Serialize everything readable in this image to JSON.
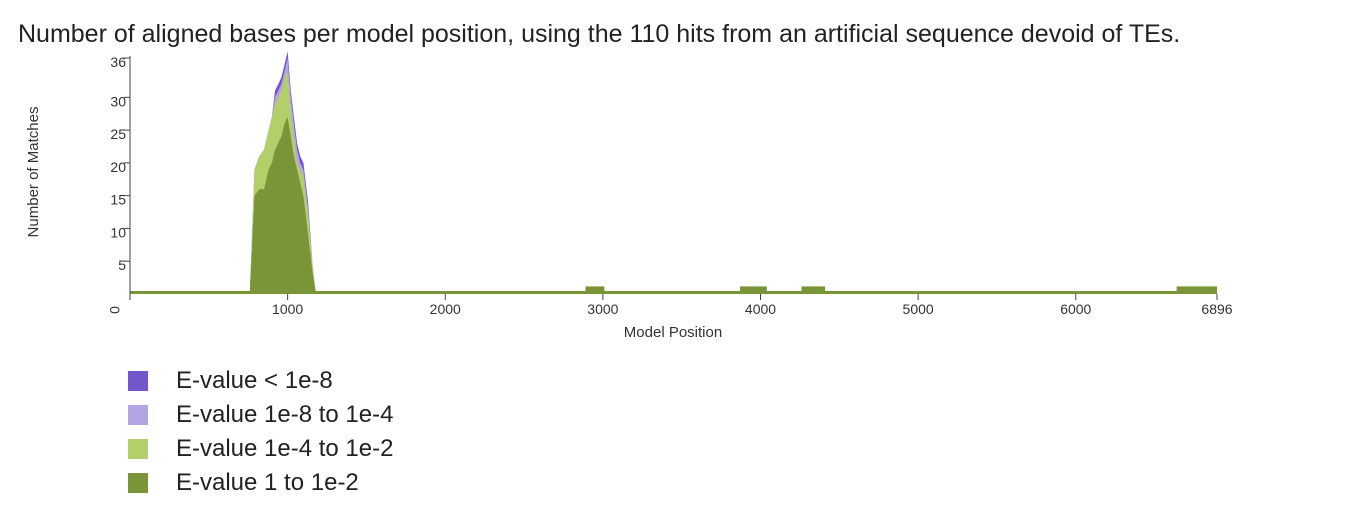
{
  "caption": "Number of aligned bases per model position, using the 110 hits from an artificial sequence devoid of TEs.",
  "chart_data": {
    "type": "area",
    "title": "",
    "xlabel": "Model Position",
    "ylabel": "Number of Matches",
    "xlim": [
      0,
      6896
    ],
    "ylim": [
      0,
      36
    ],
    "xticks": [
      0,
      1000,
      2000,
      3000,
      4000,
      5000,
      6000,
      6896
    ],
    "yticks": [
      5,
      10,
      15,
      20,
      25,
      30,
      36
    ],
    "grid": false,
    "legend_position": "bottom-left",
    "series": [
      {
        "name": "E-value < 1e-8",
        "color": "#7355cc",
        "x": [
          760,
          790,
          820,
          850,
          880,
          900,
          920,
          940,
          960,
          980,
          1000,
          1020,
          1040,
          1060,
          1080,
          1100,
          1130,
          1160,
          1180
        ],
        "y": [
          0,
          19,
          21,
          22,
          25,
          27,
          31,
          32,
          33,
          35,
          37,
          31,
          27,
          23,
          21,
          20,
          14,
          4,
          0
        ]
      },
      {
        "name": "E-value 1e-8 to 1e-4",
        "color": "#b3a4e4",
        "x": [
          760,
          790,
          820,
          850,
          880,
          900,
          920,
          940,
          960,
          980,
          1000,
          1020,
          1040,
          1060,
          1080,
          1100,
          1130,
          1160,
          1180
        ],
        "y": [
          0,
          19,
          21,
          22,
          25,
          27,
          30,
          31,
          32,
          34,
          36,
          30,
          26,
          22,
          20,
          19,
          13,
          4,
          0
        ]
      },
      {
        "name": "E-value 1e-4 to 1e-2",
        "color": "#b2cf6a",
        "x": [
          760,
          790,
          820,
          850,
          880,
          900,
          920,
          940,
          960,
          980,
          1000,
          1020,
          1040,
          1060,
          1080,
          1100,
          1130,
          1160,
          1180
        ],
        "y": [
          0,
          19,
          21,
          22,
          25,
          27,
          29,
          30,
          31,
          33,
          34,
          28,
          24,
          20,
          19,
          18,
          12,
          4,
          0
        ]
      },
      {
        "name": "E-value 1 to 1e-2",
        "color": "#7a9438",
        "x": [
          760,
          790,
          820,
          850,
          880,
          900,
          920,
          940,
          960,
          980,
          1000,
          1020,
          1040,
          1060,
          1080,
          1100,
          1130,
          1160,
          1180
        ],
        "y": [
          0,
          15,
          16,
          16,
          19,
          20,
          22,
          23,
          24,
          26,
          27,
          24,
          21,
          19,
          17,
          15,
          9,
          3,
          0
        ]
      }
    ],
    "baseline_value": 0.3,
    "blocks": [
      {
        "x_start": 2890,
        "x_end": 3010,
        "y": 1
      },
      {
        "x_start": 3870,
        "x_end": 4040,
        "y": 1
      },
      {
        "x_start": 4260,
        "x_end": 4410,
        "y": 1
      },
      {
        "x_start": 6640,
        "x_end": 6896,
        "y": 1
      }
    ]
  }
}
